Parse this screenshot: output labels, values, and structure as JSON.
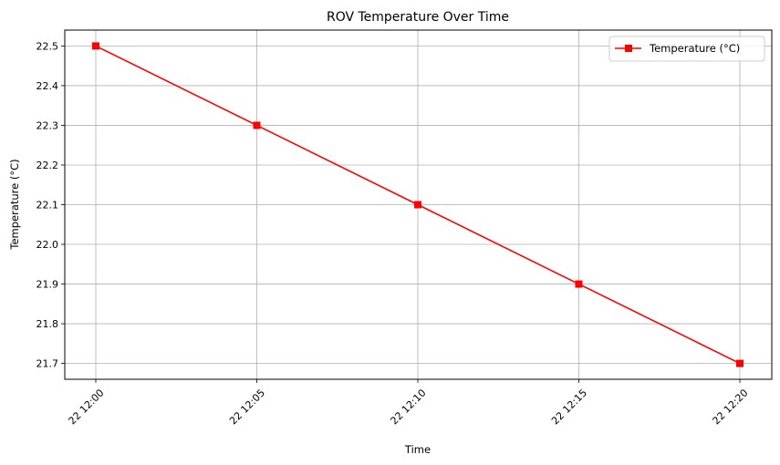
{
  "chart_data": {
    "type": "line",
    "title": "ROV Temperature Over Time",
    "xlabel": "Time",
    "ylabel": "Temperature (°C)",
    "x": [
      "22 12:00",
      "22 12:05",
      "22 12:10",
      "22 12:15",
      "22 12:20"
    ],
    "series": [
      {
        "name": "Temperature (°C)",
        "values": [
          22.5,
          22.3,
          22.1,
          21.9,
          21.7
        ],
        "color": "#ff0000",
        "marker": "square"
      }
    ],
    "yticks": [
      "21.7",
      "21.8",
      "21.9",
      "22.0",
      "22.1",
      "22.2",
      "22.3",
      "22.4",
      "22.5"
    ],
    "ylim": [
      21.66,
      22.54
    ],
    "grid": true,
    "legend": "top-right",
    "xtick_rotation": 45
  }
}
